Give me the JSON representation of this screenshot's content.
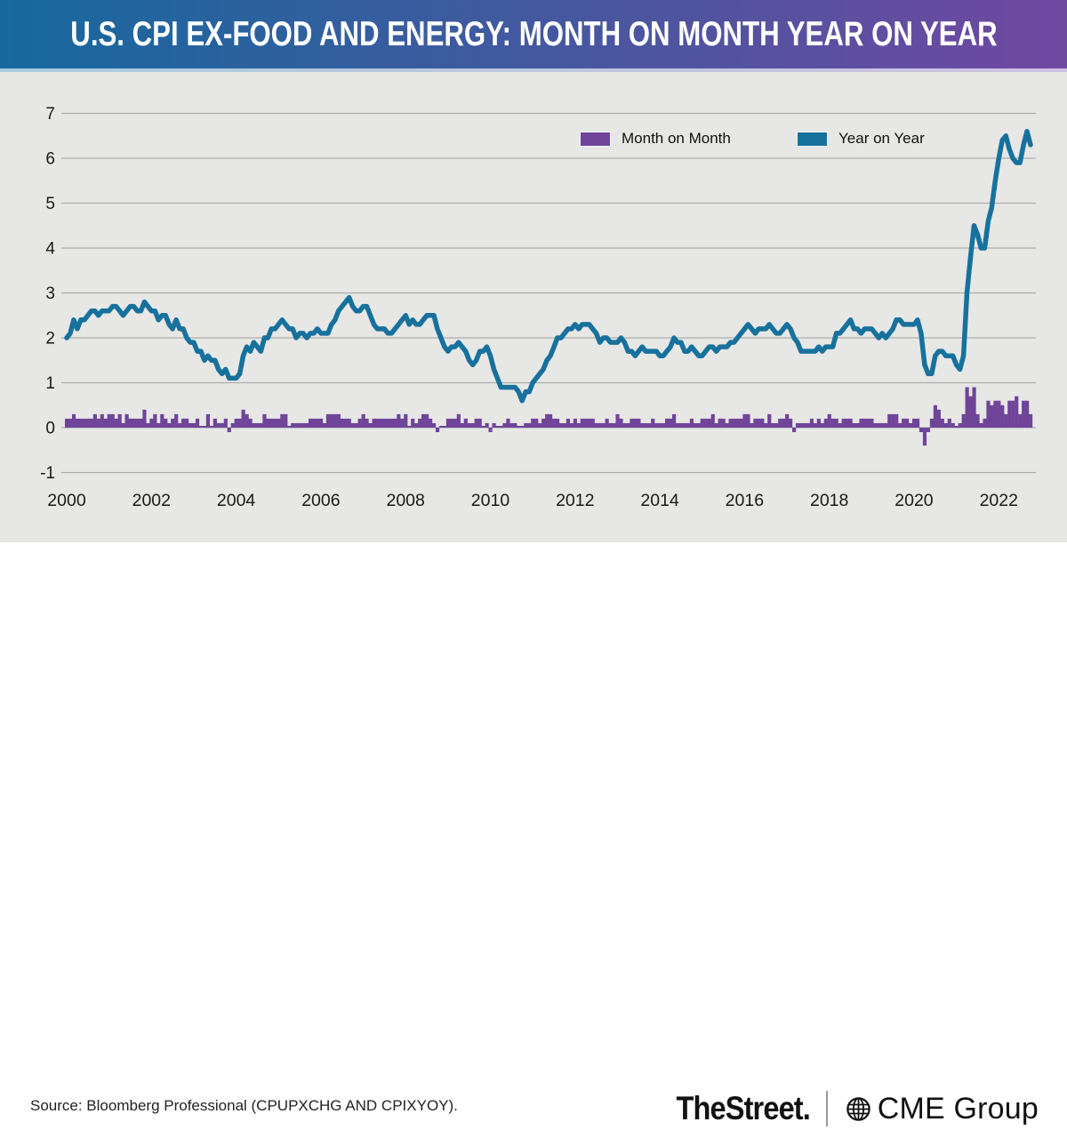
{
  "header": {
    "title": "U.S. CPI EX-FOOD AND ENERGY: MONTH ON MONTH YEAR ON YEAR",
    "gradient_left": "#16699E",
    "gradient_right": "#7048A0",
    "strip_left": "#A9CCDE",
    "strip_right": "#CDC0E0"
  },
  "legend": [
    {
      "label": "Month on Month",
      "color": "#6F4499"
    },
    {
      "label": "Year on Year",
      "color": "#17719D"
    }
  ],
  "footer": {
    "source": "Source: Bloomberg Professional (CPUPXCHG AND CPIXYOY).",
    "brand_left": "TheStreet.",
    "brand_right": "CME Group",
    "globe_icon": "globe"
  },
  "chart_data": {
    "type": "combo",
    "title": "U.S. CPI EX-FOOD AND ENERGY: MONTH ON MONTH YEAR ON YEAR",
    "x_start": "2000-01",
    "x_end": "2022-10",
    "frequency": "monthly",
    "grid": true,
    "background": "#E7E7E6",
    "gridline_color": "#ACACAC",
    "ylim": [
      -1,
      7
    ],
    "y_ticks": [
      -1,
      0,
      1,
      2,
      3,
      4,
      5,
      6,
      7
    ],
    "x_ticks": [
      2000,
      2002,
      2004,
      2006,
      2008,
      2010,
      2012,
      2014,
      2016,
      2018,
      2020,
      2022
    ],
    "series": [
      {
        "name": "Month on Month",
        "type": "bar",
        "color": "#6F4499",
        "values": [
          0.2,
          0.2,
          0.3,
          0.2,
          0.2,
          0.2,
          0.2,
          0.2,
          0.3,
          0.2,
          0.3,
          0.2,
          0.3,
          0.3,
          0.2,
          0.3,
          0.1,
          0.3,
          0.2,
          0.2,
          0.2,
          0.2,
          0.4,
          0.1,
          0.2,
          0.3,
          0.1,
          0.3,
          0.2,
          0.1,
          0.2,
          0.3,
          0.1,
          0.2,
          0.2,
          0.1,
          0.1,
          0.2,
          0.0,
          0.0,
          0.3,
          0.0,
          0.2,
          0.1,
          0.1,
          0.2,
          -0.1,
          0.1,
          0.2,
          0.2,
          0.4,
          0.3,
          0.2,
          0.1,
          0.1,
          0.1,
          0.3,
          0.2,
          0.2,
          0.2,
          0.2,
          0.3,
          0.3,
          0.0,
          0.1,
          0.1,
          0.1,
          0.1,
          0.1,
          0.2,
          0.2,
          0.2,
          0.2,
          0.1,
          0.3,
          0.3,
          0.3,
          0.3,
          0.2,
          0.2,
          0.2,
          0.1,
          0.1,
          0.2,
          0.3,
          0.2,
          0.1,
          0.2,
          0.2,
          0.2,
          0.2,
          0.2,
          0.2,
          0.2,
          0.3,
          0.2,
          0.3,
          0.0,
          0.2,
          0.1,
          0.2,
          0.3,
          0.3,
          0.2,
          0.1,
          -0.1,
          0.0,
          0.0,
          0.2,
          0.2,
          0.2,
          0.3,
          0.1,
          0.2,
          0.1,
          0.1,
          0.2,
          0.2,
          0.0,
          0.1,
          -0.1,
          0.1,
          0.0,
          0.0,
          0.1,
          0.2,
          0.1,
          0.1,
          0.0,
          0.0,
          0.1,
          0.1,
          0.2,
          0.2,
          0.1,
          0.2,
          0.3,
          0.3,
          0.2,
          0.2,
          0.1,
          0.1,
          0.2,
          0.1,
          0.2,
          0.1,
          0.2,
          0.2,
          0.2,
          0.2,
          0.1,
          0.1,
          0.1,
          0.2,
          0.1,
          0.1,
          0.3,
          0.2,
          0.1,
          0.1,
          0.2,
          0.2,
          0.2,
          0.1,
          0.1,
          0.1,
          0.2,
          0.1,
          0.1,
          0.1,
          0.2,
          0.2,
          0.3,
          0.1,
          0.1,
          0.1,
          0.1,
          0.2,
          0.1,
          0.1,
          0.2,
          0.2,
          0.2,
          0.3,
          0.1,
          0.2,
          0.2,
          0.1,
          0.2,
          0.2,
          0.2,
          0.2,
          0.3,
          0.3,
          0.1,
          0.2,
          0.2,
          0.2,
          0.1,
          0.3,
          0.1,
          0.1,
          0.2,
          0.2,
          0.3,
          0.2,
          -0.1,
          0.1,
          0.1,
          0.1,
          0.1,
          0.2,
          0.1,
          0.2,
          0.1,
          0.2,
          0.3,
          0.2,
          0.2,
          0.1,
          0.2,
          0.2,
          0.2,
          0.1,
          0.1,
          0.2,
          0.2,
          0.2,
          0.2,
          0.1,
          0.1,
          0.1,
          0.1,
          0.3,
          0.3,
          0.3,
          0.1,
          0.2,
          0.2,
          0.1,
          0.2,
          0.2,
          -0.1,
          -0.4,
          -0.1,
          0.2,
          0.5,
          0.4,
          0.2,
          0.1,
          0.2,
          0.1,
          0.0,
          0.1,
          0.3,
          0.9,
          0.7,
          0.9,
          0.3,
          0.1,
          0.2,
          0.6,
          0.5,
          0.6,
          0.6,
          0.5,
          0.3,
          0.6,
          0.6,
          0.7,
          0.3,
          0.6,
          0.6,
          0.3
        ]
      },
      {
        "name": "Year on Year",
        "type": "line",
        "color": "#17719D",
        "values": [
          2.0,
          2.1,
          2.4,
          2.2,
          2.4,
          2.4,
          2.5,
          2.6,
          2.6,
          2.5,
          2.6,
          2.6,
          2.6,
          2.7,
          2.7,
          2.6,
          2.5,
          2.6,
          2.7,
          2.7,
          2.6,
          2.6,
          2.8,
          2.7,
          2.6,
          2.6,
          2.4,
          2.5,
          2.5,
          2.3,
          2.2,
          2.4,
          2.2,
          2.2,
          2.0,
          1.9,
          1.9,
          1.7,
          1.7,
          1.5,
          1.6,
          1.5,
          1.5,
          1.3,
          1.2,
          1.3,
          1.1,
          1.1,
          1.1,
          1.2,
          1.6,
          1.8,
          1.7,
          1.9,
          1.8,
          1.7,
          2.0,
          2.0,
          2.2,
          2.2,
          2.3,
          2.4,
          2.3,
          2.2,
          2.2,
          2.0,
          2.1,
          2.1,
          2.0,
          2.1,
          2.1,
          2.2,
          2.1,
          2.1,
          2.1,
          2.3,
          2.4,
          2.6,
          2.7,
          2.8,
          2.9,
          2.7,
          2.6,
          2.6,
          2.7,
          2.7,
          2.5,
          2.3,
          2.2,
          2.2,
          2.2,
          2.1,
          2.1,
          2.2,
          2.3,
          2.4,
          2.5,
          2.3,
          2.4,
          2.3,
          2.3,
          2.4,
          2.5,
          2.5,
          2.5,
          2.2,
          2.0,
          1.8,
          1.7,
          1.8,
          1.8,
          1.9,
          1.8,
          1.7,
          1.5,
          1.4,
          1.5,
          1.7,
          1.7,
          1.8,
          1.6,
          1.3,
          1.1,
          0.9,
          0.9,
          0.9,
          0.9,
          0.9,
          0.8,
          0.6,
          0.8,
          0.8,
          1.0,
          1.1,
          1.2,
          1.3,
          1.5,
          1.6,
          1.8,
          2.0,
          2.0,
          2.1,
          2.2,
          2.2,
          2.3,
          2.2,
          2.3,
          2.3,
          2.3,
          2.2,
          2.1,
          1.9,
          2.0,
          2.0,
          1.9,
          1.9,
          1.9,
          2.0,
          1.9,
          1.7,
          1.7,
          1.6,
          1.7,
          1.8,
          1.7,
          1.7,
          1.7,
          1.7,
          1.6,
          1.6,
          1.7,
          1.8,
          2.0,
          1.9,
          1.9,
          1.7,
          1.7,
          1.8,
          1.7,
          1.6,
          1.6,
          1.7,
          1.8,
          1.8,
          1.7,
          1.8,
          1.8,
          1.8,
          1.9,
          1.9,
          2.0,
          2.1,
          2.2,
          2.3,
          2.2,
          2.1,
          2.2,
          2.2,
          2.2,
          2.3,
          2.2,
          2.1,
          2.1,
          2.2,
          2.3,
          2.2,
          2.0,
          1.9,
          1.7,
          1.7,
          1.7,
          1.7,
          1.7,
          1.8,
          1.7,
          1.8,
          1.8,
          1.8,
          2.1,
          2.1,
          2.2,
          2.3,
          2.4,
          2.2,
          2.2,
          2.1,
          2.2,
          2.2,
          2.2,
          2.1,
          2.0,
          2.1,
          2.0,
          2.1,
          2.2,
          2.4,
          2.4,
          2.3,
          2.3,
          2.3,
          2.3,
          2.4,
          2.1,
          1.4,
          1.2,
          1.2,
          1.6,
          1.7,
          1.7,
          1.6,
          1.6,
          1.6,
          1.4,
          1.3,
          1.6,
          3.0,
          3.8,
          4.5,
          4.3,
          4.0,
          4.0,
          4.6,
          4.9,
          5.5,
          6.0,
          6.4,
          6.5,
          6.2,
          6.0,
          5.9,
          5.9,
          6.3,
          6.6,
          6.3
        ]
      }
    ]
  }
}
